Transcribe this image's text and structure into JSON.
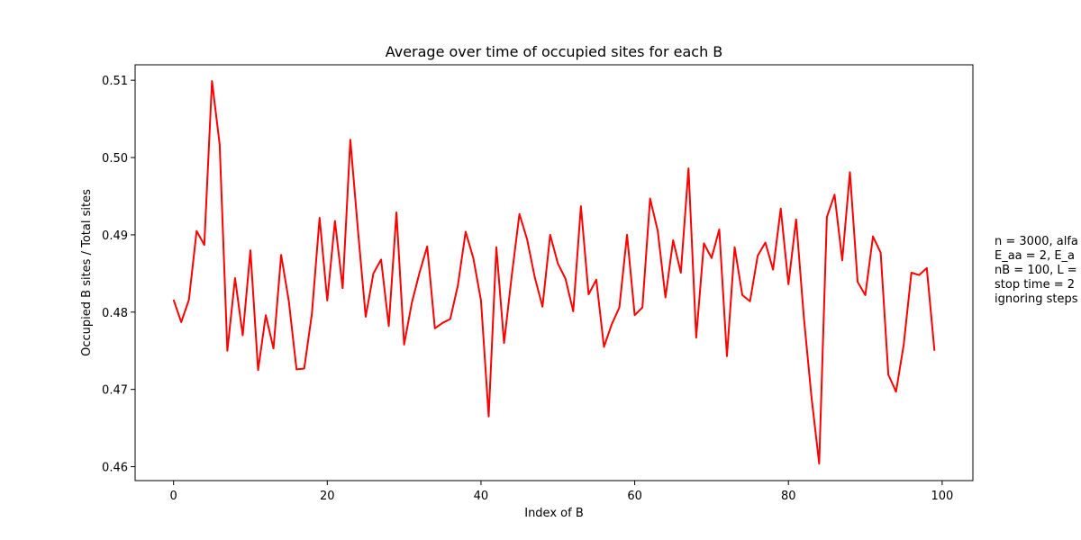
{
  "chart_data": {
    "type": "line",
    "title": "Average over time of occupied sites for each B",
    "xlabel": "Index of B",
    "ylabel": "Occupied B sites / Total sites",
    "xlim": [
      -5,
      104
    ],
    "ylim": [
      0.4582,
      0.512
    ],
    "xticks": [
      0,
      20,
      40,
      60,
      80,
      100
    ],
    "xtick_labels": [
      "0",
      "20",
      "40",
      "60",
      "80",
      "100"
    ],
    "yticks": [
      0.46,
      0.47,
      0.48,
      0.49,
      0.5,
      0.51
    ],
    "ytick_labels": [
      "0.46",
      "0.47",
      "0.48",
      "0.49",
      "0.50",
      "0.51"
    ],
    "grid": false,
    "annotation": [
      "n = 3000, alfa",
      "E_aa = 2, E_a",
      "nB = 100, L =",
      "stop time = 2",
      "ignoring steps"
    ],
    "series": [
      {
        "color": "#ff0000",
        "x": [
          0,
          1,
          2,
          3,
          4,
          5,
          6,
          7,
          8,
          9,
          10,
          11,
          12,
          13,
          14,
          15,
          16,
          17,
          18,
          19,
          20,
          21,
          22,
          23,
          24,
          25,
          26,
          27,
          28,
          29,
          30,
          31,
          32,
          33,
          34,
          35,
          36,
          37,
          38,
          39,
          40,
          41,
          42,
          43,
          44,
          45,
          46,
          47,
          48,
          49,
          50,
          51,
          52,
          53,
          54,
          55,
          56,
          57,
          58,
          59,
          60,
          61,
          62,
          63,
          64,
          65,
          66,
          67,
          68,
          69,
          70,
          71,
          72,
          73,
          74,
          75,
          76,
          77,
          78,
          79,
          80,
          81,
          82,
          83,
          84,
          85,
          86,
          87,
          88,
          89,
          90,
          91,
          92,
          93,
          94,
          95,
          96,
          97,
          98,
          99
        ],
        "values": [
          0.4816,
          0.4787,
          0.4816,
          0.4905,
          0.4887,
          0.5099,
          0.5017,
          0.475,
          0.4844,
          0.477,
          0.488,
          0.4725,
          0.4796,
          0.4753,
          0.4874,
          0.4814,
          0.4726,
          0.4727,
          0.4798,
          0.4922,
          0.4815,
          0.4918,
          0.4831,
          0.5023,
          0.4905,
          0.4794,
          0.485,
          0.4868,
          0.4782,
          0.4929,
          0.4758,
          0.4812,
          0.4851,
          0.4885,
          0.4779,
          0.4786,
          0.4791,
          0.4835,
          0.4904,
          0.487,
          0.4815,
          0.4665,
          0.4884,
          0.476,
          0.4847,
          0.4927,
          0.4894,
          0.4845,
          0.4807,
          0.49,
          0.4863,
          0.4843,
          0.4801,
          0.4937,
          0.4823,
          0.4842,
          0.4755,
          0.4784,
          0.4806,
          0.49,
          0.4796,
          0.4806,
          0.4947,
          0.4905,
          0.4819,
          0.4893,
          0.4851,
          0.4986,
          0.4767,
          0.4889,
          0.487,
          0.4907,
          0.4743,
          0.4884,
          0.4822,
          0.4814,
          0.4873,
          0.489,
          0.4855,
          0.4934,
          0.4836,
          0.492,
          0.4794,
          0.469,
          0.4604,
          0.4923,
          0.4952,
          0.4867,
          0.4981,
          0.4839,
          0.4822,
          0.4898,
          0.4877,
          0.4719,
          0.4697,
          0.4758,
          0.4851,
          0.4848,
          0.4857,
          0.475
        ]
      }
    ]
  }
}
